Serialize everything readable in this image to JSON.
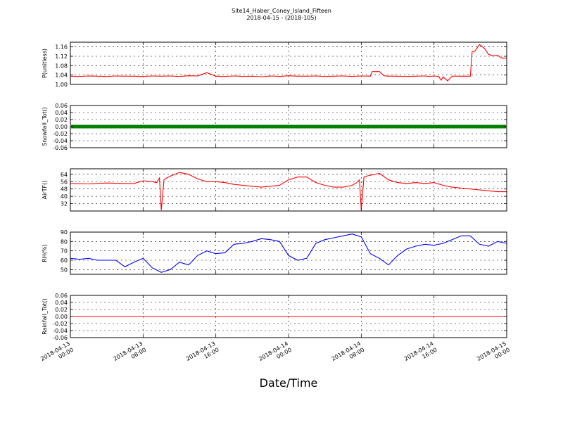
{
  "colors": {
    "red": "#ff0000",
    "green": "#008000",
    "blue": "#0000ff"
  },
  "chart_data": {
    "type": "line",
    "title": "Site14_Haber_Coney_Island_Fifteen",
    "subtitle": "2018-04-15 - (2018-105)",
    "xlabel": "Date/Time",
    "x_ticks": [
      {
        "line1": "2018-04-13",
        "line2": "00:00"
      },
      {
        "line1": "2018-04-13",
        "line2": "08:00"
      },
      {
        "line1": "2018-04-13",
        "line2": "16:00"
      },
      {
        "line1": "2018-04-14",
        "line2": "00:00"
      },
      {
        "line1": "2018-04-14",
        "line2": "08:00"
      },
      {
        "line1": "2018-04-14",
        "line2": "16:00"
      },
      {
        "line1": "2018-04-15",
        "line2": "00:00"
      }
    ],
    "xlim_hours": [
      0,
      48
    ],
    "grid": true,
    "panels": [
      {
        "ylabel": "P(unitless)",
        "ylim": [
          1.0,
          1.18
        ],
        "yticks": [
          "1.00",
          "1.04",
          "1.08",
          "1.12",
          "1.16"
        ],
        "yvals": [
          1.0,
          1.04,
          1.08,
          1.12,
          1.16
        ],
        "color": "red",
        "marker": false,
        "series": {
          "x": [
            0,
            1,
            2,
            3,
            4,
            5,
            6,
            7,
            8,
            9,
            10,
            11,
            12,
            13,
            14,
            15,
            16,
            17,
            18,
            19,
            20,
            21,
            21.5,
            22,
            23,
            24,
            25,
            26,
            27,
            28,
            29,
            30,
            31,
            32,
            33,
            33.2,
            33.5,
            34,
            34.5,
            35,
            36,
            37,
            38,
            39,
            39.5,
            40,
            40.5,
            40.8,
            41,
            41.5,
            42,
            43,
            44,
            44.2,
            44.5,
            45,
            45.5,
            46,
            46.5,
            47,
            47.5,
            48
          ],
          "y": [
            1.035,
            1.034,
            1.036,
            1.035,
            1.034,
            1.036,
            1.035,
            1.035,
            1.034,
            1.036,
            1.035,
            1.036,
            1.034,
            1.037,
            1.036,
            1.05,
            1.035,
            1.034,
            1.036,
            1.034,
            1.035,
            1.033,
            1.034,
            1.036,
            1.034,
            1.037,
            1.035,
            1.035,
            1.036,
            1.034,
            1.035,
            1.036,
            1.034,
            1.036,
            1.035,
            1.055,
            1.055,
            1.055,
            1.037,
            1.035,
            1.035,
            1.034,
            1.035,
            1.036,
            1.034,
            1.036,
            1.034,
            1.018,
            1.032,
            1.015,
            1.035,
            1.035,
            1.035,
            1.14,
            1.142,
            1.17,
            1.155,
            1.128,
            1.122,
            1.124,
            1.112,
            1.112
          ]
        }
      },
      {
        "ylabel": "Snowfall_Tot()",
        "ylim": [
          -0.06,
          0.06
        ],
        "yticks": [
          "-0.06",
          "-0.04",
          "-0.02",
          "0.00",
          "0.02",
          "0.04",
          "0.06"
        ],
        "yvals": [
          -0.06,
          -0.04,
          -0.02,
          0,
          0.02,
          0.04,
          0.06
        ],
        "color": "green",
        "marker": true,
        "series": {
          "x": [
            0,
            48
          ],
          "y": [
            0,
            0
          ]
        }
      },
      {
        "ylabel": "AirTF()",
        "ylim": [
          24,
          70
        ],
        "yticks": [
          "32",
          "40",
          "48",
          "56",
          "64"
        ],
        "yvals": [
          32,
          40,
          48,
          56,
          64
        ],
        "color": "red",
        "marker": false,
        "series": {
          "x": [
            0,
            2,
            4,
            6,
            7,
            8,
            9,
            9.5,
            9.8,
            10,
            10.3,
            10.6,
            11,
            12,
            13,
            14,
            15,
            16,
            17,
            18,
            19,
            20,
            21,
            22,
            23,
            24,
            25,
            26,
            27,
            28,
            29,
            30,
            31,
            31.5,
            31.8,
            32,
            32.3,
            32.6,
            33,
            34,
            35,
            36,
            37,
            38,
            39,
            40,
            41,
            42,
            43,
            44,
            45,
            46,
            47,
            48
          ],
          "y": [
            54,
            53.5,
            54.5,
            54,
            54,
            57,
            56,
            55,
            60,
            25,
            58,
            60,
            62,
            66,
            64,
            59,
            56,
            56,
            55,
            53,
            52,
            51,
            50,
            51,
            52,
            58,
            61,
            61,
            55,
            52,
            50,
            50,
            52,
            55,
            58,
            25,
            61,
            62,
            63,
            65,
            58,
            55,
            54,
            55,
            54,
            55,
            52,
            50,
            49,
            48,
            47,
            46,
            45,
            45
          ]
        }
      },
      {
        "ylabel": "RH(%)",
        "ylim": [
          45,
          90
        ],
        "yticks": [
          "50",
          "60",
          "70",
          "80",
          "90"
        ],
        "yvals": [
          50,
          60,
          70,
          80,
          90
        ],
        "color": "blue",
        "marker": false,
        "series": {
          "x": [
            0,
            1,
            2,
            3,
            4,
            5,
            6,
            7,
            8,
            9,
            10,
            11,
            12,
            13,
            14,
            15,
            16,
            17,
            18,
            19,
            20,
            21,
            22,
            23,
            24,
            25,
            26,
            27,
            28,
            29,
            30,
            31,
            32,
            33,
            34,
            35,
            36,
            37,
            38,
            39,
            40,
            41,
            42,
            43,
            44,
            45,
            46,
            47,
            48
          ],
          "y": [
            62,
            61,
            62,
            60,
            60,
            60,
            53,
            58,
            62,
            52,
            47,
            50,
            58,
            55,
            65,
            70,
            67,
            68,
            77,
            78,
            80,
            83,
            82,
            80,
            65,
            60,
            62,
            78,
            82,
            84,
            86,
            88,
            85,
            67,
            62,
            55,
            65,
            72,
            75,
            77,
            76,
            78,
            82,
            86,
            86,
            77,
            75,
            80,
            78
          ]
        }
      },
      {
        "ylabel": "Rainfall_Tot()",
        "ylim": [
          -0.06,
          0.06
        ],
        "yticks": [
          "-0.06",
          "-0.04",
          "-0.02",
          "0.00",
          "0.02",
          "0.04",
          "0.06"
        ],
        "yvals": [
          -0.06,
          -0.04,
          -0.02,
          0,
          0.02,
          0.04,
          0.06
        ],
        "color": "red",
        "marker": false,
        "series": {
          "x": [
            0,
            48
          ],
          "y": [
            0,
            0
          ]
        }
      }
    ]
  }
}
